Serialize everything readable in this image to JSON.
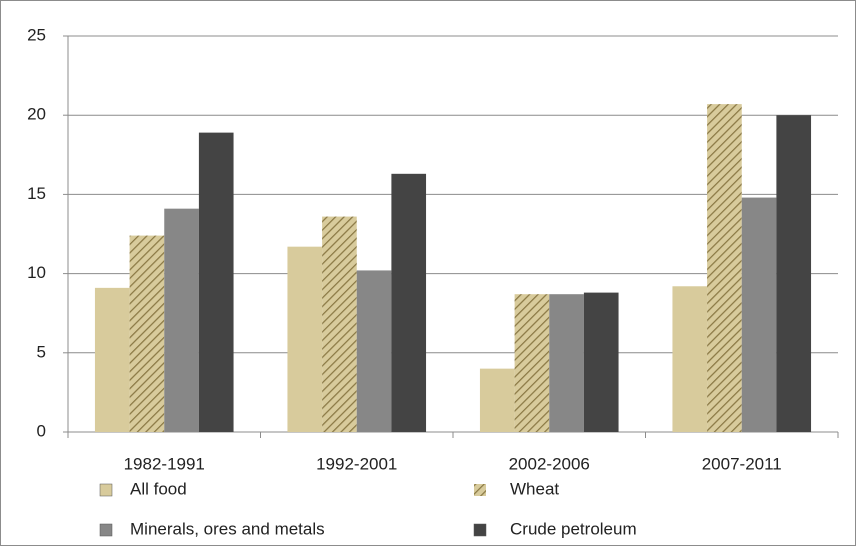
{
  "chart_data": {
    "type": "bar",
    "categories": [
      "1982-1991",
      "1992-2001",
      "2002-2006",
      "2007-2011"
    ],
    "series": [
      {
        "name": "All food",
        "color": "#d8cb9c",
        "values": [
          9.1,
          11.7,
          4.0,
          9.2
        ]
      },
      {
        "name": "Wheat",
        "color": "#d8cb9c",
        "hatch": true,
        "values": [
          12.4,
          13.6,
          8.7,
          20.7
        ]
      },
      {
        "name": "Minerals, ores and metals",
        "color": "#878787",
        "values": [
          14.1,
          10.2,
          8.7,
          14.8
        ]
      },
      {
        "name": "Crude petroleum",
        "color": "#444444",
        "values": [
          18.9,
          16.3,
          8.8,
          20.0
        ]
      }
    ],
    "ylim": [
      0,
      25
    ],
    "yticks": [
      0,
      5,
      10,
      15,
      20,
      25
    ],
    "grid": true,
    "legend": "bottom"
  }
}
